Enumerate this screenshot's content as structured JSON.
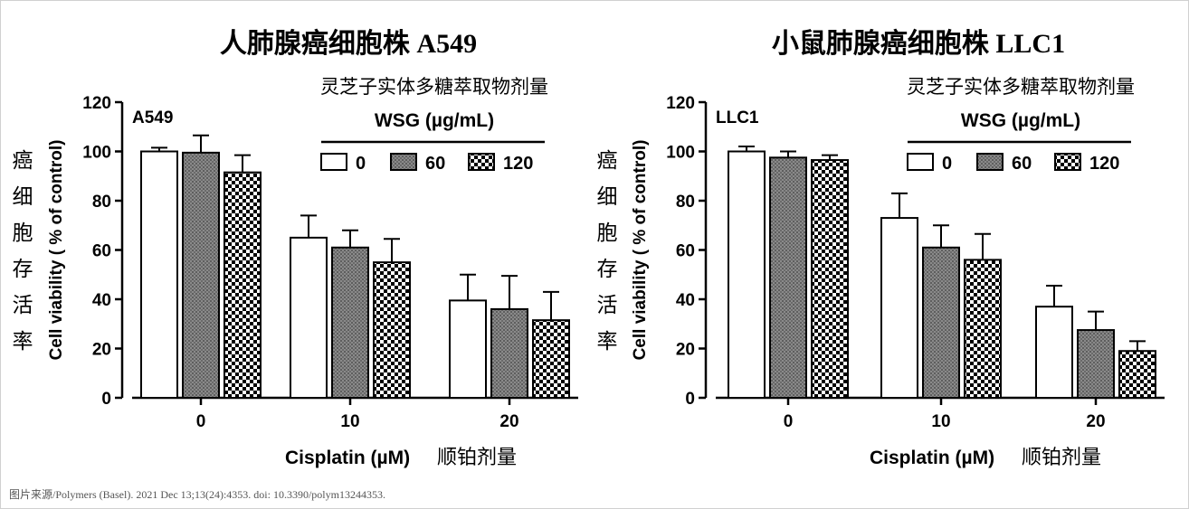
{
  "source_note": "图片来源/Polymers (Basel). 2021 Dec 13;13(24):4353. doi: 10.3390/polym13244353.",
  "legend_header_cn": "灵芝子实体多糖萃取物剂量",
  "legend_title": "WSG (µg/mL)",
  "y_label_cn": "癌细胞存活率",
  "x_label": "Cisplatin (µM)",
  "x_label_cn": "顺铂剂量",
  "ylabel": "Cell viability ( % of control)",
  "colors": {
    "ink": "#000000",
    "hatch_60": "#777777",
    "hatch_120_light": "#ffffff"
  },
  "chart_data": [
    {
      "type": "bar",
      "title": "人肺腺癌细胞株 A549",
      "panel_label": "A549",
      "categories": [
        "0",
        "10",
        "20"
      ],
      "ylim": [
        0,
        120
      ],
      "yticks": [
        0,
        20,
        40,
        60,
        80,
        100,
        120
      ],
      "series": [
        {
          "name": "0",
          "values": [
            100,
            65,
            39.5
          ],
          "errors": [
            1.5,
            9,
            10.5
          ]
        },
        {
          "name": "60",
          "values": [
            99.5,
            61,
            36
          ],
          "errors": [
            7,
            7,
            13.5
          ]
        },
        {
          "name": "120",
          "values": [
            91.5,
            55,
            31.5
          ],
          "errors": [
            7,
            9.5,
            11.5
          ]
        }
      ]
    },
    {
      "type": "bar",
      "title": "小鼠肺腺癌细胞株 LLC1",
      "panel_label": "LLC1",
      "categories": [
        "0",
        "10",
        "20"
      ],
      "ylim": [
        0,
        120
      ],
      "yticks": [
        0,
        20,
        40,
        60,
        80,
        100,
        120
      ],
      "series": [
        {
          "name": "0",
          "values": [
            100,
            73,
            37
          ],
          "errors": [
            2,
            10,
            8.5
          ]
        },
        {
          "name": "60",
          "values": [
            97.5,
            61,
            27.5
          ],
          "errors": [
            2.5,
            9,
            7.5
          ]
        },
        {
          "name": "120",
          "values": [
            96.5,
            56,
            19
          ],
          "errors": [
            2,
            10.5,
            4
          ]
        }
      ]
    }
  ]
}
